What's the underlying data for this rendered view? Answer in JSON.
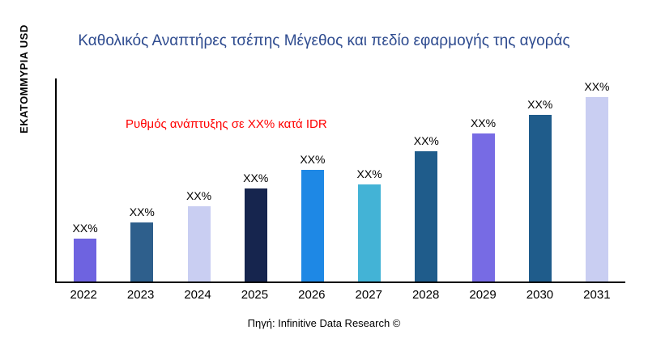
{
  "chart_data": {
    "type": "bar",
    "title": "Καθολικός Αναπτήρες τσέπης Μέγεθος και πεδίο εφαρμογής της αγοράς",
    "ylabel": "ΕΚΑΤΟΜΜΥΡΙΑ USD",
    "xlabel": "",
    "annotation": "Ρυθμός ανάπτυξης σε XX% κατά IDR",
    "source": "Πηγή: Infinitive Data Research ©",
    "categories": [
      "2022",
      "2023",
      "2024",
      "2025",
      "2026",
      "2027",
      "2028",
      "2029",
      "2030",
      "2031"
    ],
    "values": [
      21,
      29,
      37,
      46,
      55,
      48,
      64,
      73,
      82,
      91
    ],
    "bar_labels": [
      "XX%",
      "XX%",
      "XX%",
      "XX%",
      "XX%",
      "XX%",
      "XX%",
      "XX%",
      "XX%",
      "XX%"
    ],
    "bar_colors": [
      "#6E63E0",
      "#2E5F8C",
      "#C9CEF2",
      "#16254E",
      "#1E88E5",
      "#43B3D6",
      "#1F5C8B",
      "#776BE4",
      "#1F5C8B",
      "#C9CEF2"
    ],
    "ylim": [
      0,
      100
    ],
    "grid": false,
    "legend": false,
    "colors": {
      "title": "#2E4B8F",
      "annotation": "#FF0000",
      "axis": "#000000"
    }
  }
}
